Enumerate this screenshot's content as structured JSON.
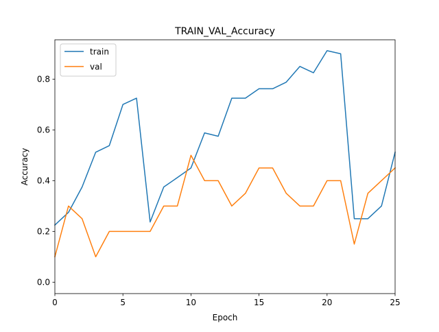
{
  "chart_data": {
    "type": "line",
    "title": "TRAIN_VAL_Accuracy",
    "xlabel": "Epoch",
    "ylabel": "Accuracy",
    "xlim": [
      0,
      25
    ],
    "ylim": [
      -0.045,
      0.955
    ],
    "xticks": [
      0,
      5,
      10,
      15,
      20,
      25
    ],
    "yticks": [
      0.0,
      0.2,
      0.4,
      0.6,
      0.8
    ],
    "ytick_labels": [
      "0.0",
      "0.2",
      "0.4",
      "0.6",
      "0.8"
    ],
    "grid": false,
    "legend": "top-left",
    "x": [
      0,
      1,
      2,
      3,
      4,
      5,
      6,
      7,
      8,
      9,
      10,
      11,
      12,
      13,
      14,
      15,
      16,
      17,
      18,
      19,
      20,
      21,
      22,
      23,
      24,
      25
    ],
    "series": [
      {
        "name": "train",
        "color": "#1f77b4",
        "values": [
          0.225,
          0.275,
          0.375,
          0.512,
          0.538,
          0.7,
          0.725,
          0.237,
          0.375,
          0.412,
          0.45,
          0.588,
          0.575,
          0.725,
          0.725,
          0.762,
          0.762,
          0.788,
          0.85,
          0.825,
          0.912,
          0.9,
          0.25,
          0.25,
          0.3,
          0.512
        ]
      },
      {
        "name": "val",
        "color": "#ff7f0e",
        "values": [
          0.1,
          0.3,
          0.25,
          0.1,
          0.2,
          0.2,
          0.2,
          0.2,
          0.3,
          0.3,
          0.5,
          0.4,
          0.4,
          0.3,
          0.35,
          0.45,
          0.45,
          0.35,
          0.3,
          0.3,
          0.4,
          0.4,
          0.15,
          0.35,
          0.4,
          0.45
        ]
      }
    ]
  }
}
